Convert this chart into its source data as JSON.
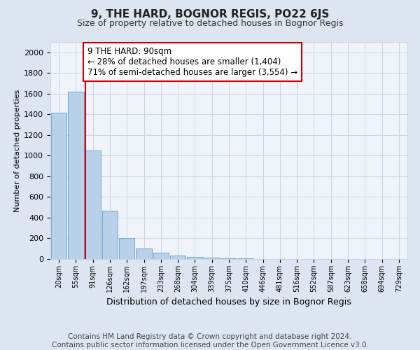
{
  "title": "9, THE HARD, BOGNOR REGIS, PO22 6JS",
  "subtitle": "Size of property relative to detached houses in Bognor Regis",
  "xlabel": "Distribution of detached houses by size in Bognor Regis",
  "ylabel": "Number of detached properties",
  "footer_line1": "Contains HM Land Registry data © Crown copyright and database right 2024.",
  "footer_line2": "Contains public sector information licensed under the Open Government Licence v3.0.",
  "categories": [
    "20sqm",
    "55sqm",
    "91sqm",
    "126sqm",
    "162sqm",
    "197sqm",
    "233sqm",
    "268sqm",
    "304sqm",
    "339sqm",
    "375sqm",
    "410sqm",
    "446sqm",
    "481sqm",
    "516sqm",
    "552sqm",
    "587sqm",
    "623sqm",
    "658sqm",
    "694sqm",
    "729sqm"
  ],
  "values": [
    1415,
    1620,
    1050,
    470,
    200,
    105,
    60,
    35,
    20,
    12,
    8,
    5,
    3,
    2,
    1,
    1,
    0,
    0,
    0,
    0,
    0
  ],
  "bar_color": "#b8d0e8",
  "bar_edge_color": "#6aaad4",
  "annotation_line1": "9 THE HARD: 90sqm",
  "annotation_line2": "← 28% of detached houses are smaller (1,404)",
  "annotation_line3": "71% of semi-detached houses are larger (3,554) →",
  "vline_color": "#cc0000",
  "vline_position": 2,
  "ylim": [
    0,
    2100
  ],
  "yticks": [
    0,
    200,
    400,
    600,
    800,
    1000,
    1200,
    1400,
    1600,
    1800,
    2000
  ],
  "grid_color": "#c8d4e8",
  "background_color": "#dde5f0",
  "plot_background": "#f0f4fa",
  "title_fontsize": 11,
  "subtitle_fontsize": 9,
  "annotation_fontsize": 8.5,
  "footer_fontsize": 7.5,
  "ylabel_fontsize": 8,
  "xlabel_fontsize": 9
}
